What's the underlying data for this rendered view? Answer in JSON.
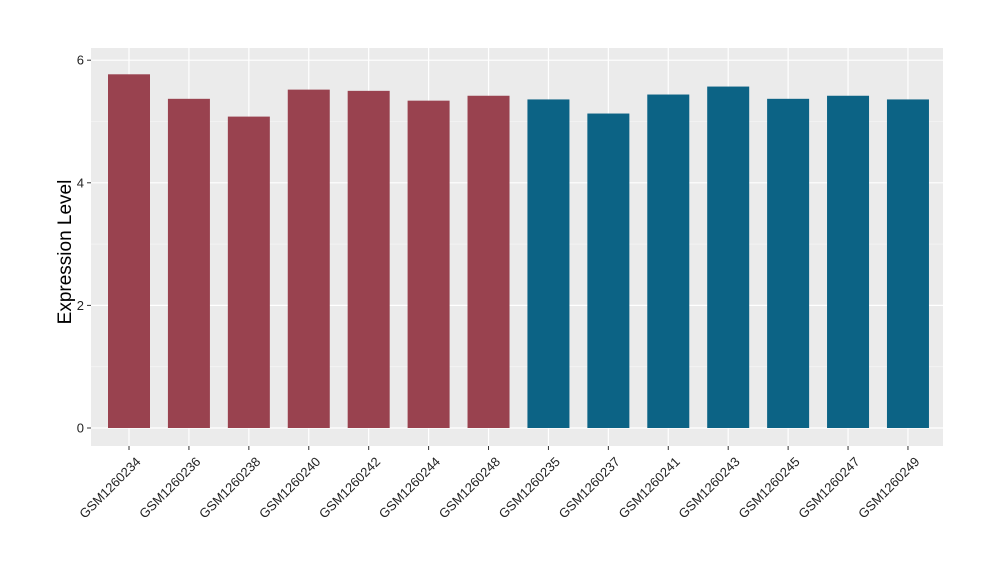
{
  "chart_data": {
    "type": "bar",
    "ylabel": "Expression Level",
    "xlabel": "",
    "ylim": [
      0,
      6.5
    ],
    "yticks": [
      0,
      2,
      4,
      6
    ],
    "grid": true,
    "categories": [
      "GSM1260234",
      "GSM1260236",
      "GSM1260238",
      "GSM1260240",
      "GSM1260242",
      "GSM1260244",
      "GSM1260248",
      "GSM1260235",
      "GSM1260237",
      "GSM1260241",
      "GSM1260243",
      "GSM1260245",
      "GSM1260247",
      "GSM1260249"
    ],
    "values": [
      5.77,
      5.37,
      5.08,
      5.52,
      5.5,
      5.34,
      5.42,
      5.36,
      5.13,
      5.44,
      5.57,
      5.37,
      5.42,
      5.36
    ],
    "groups": [
      0,
      0,
      0,
      0,
      0,
      0,
      0,
      1,
      1,
      1,
      1,
      1,
      1,
      1
    ],
    "colors": {
      "group_colors": [
        "#99424F",
        "#0C6385"
      ],
      "panel_background": "#EBEBEB",
      "grid_major": "#FFFFFF",
      "grid_minor": "#F5F5F5"
    }
  }
}
